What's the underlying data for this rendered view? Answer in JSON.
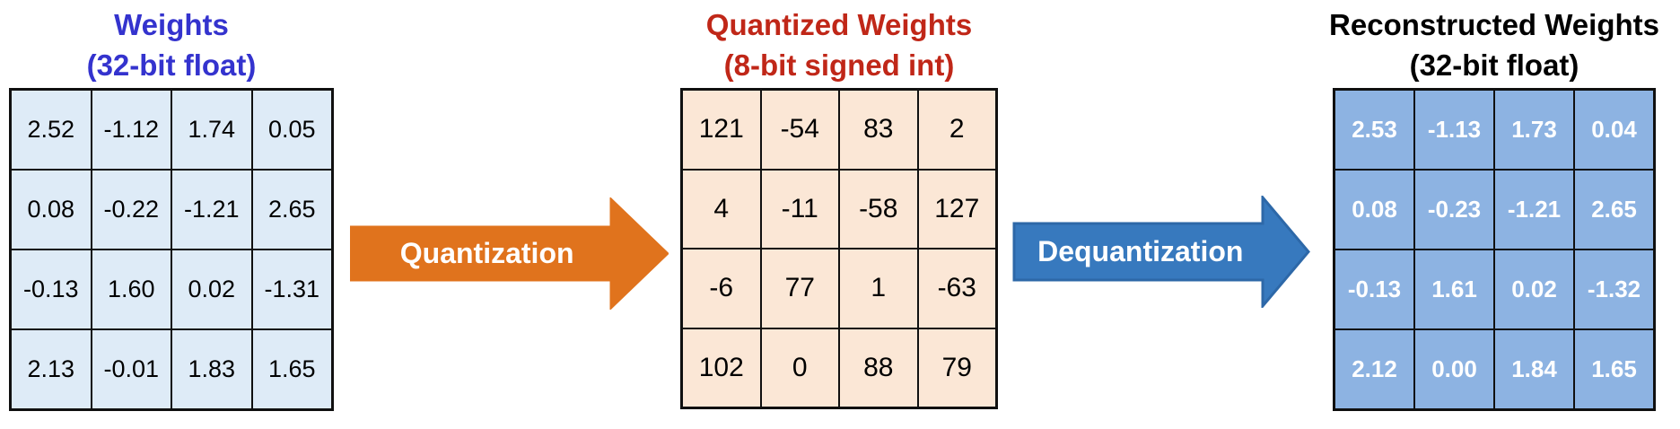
{
  "panels": {
    "weights": {
      "title_line1": "Weights",
      "title_line2": "(32-bit float)",
      "title_color": "#3433CE",
      "cell_bg": "#DEEBF7",
      "text_color": "#000000",
      "rows": [
        [
          "2.52",
          "-1.12",
          "1.74",
          "0.05"
        ],
        [
          "0.08",
          "-0.22",
          "-1.21",
          "2.65"
        ],
        [
          "-0.13",
          "1.60",
          "0.02",
          "-1.31"
        ],
        [
          "2.13",
          "-0.01",
          "1.83",
          "1.65"
        ]
      ]
    },
    "quantized": {
      "title_line1": "Quantized Weights",
      "title_line2": "(8-bit signed int)",
      "title_color": "#C02718",
      "cell_bg": "#FBE7D6",
      "text_color": "#000000",
      "rows": [
        [
          "121",
          "-54",
          "83",
          "2"
        ],
        [
          "4",
          "-11",
          "-58",
          "127"
        ],
        [
          "-6",
          "77",
          "1",
          "-63"
        ],
        [
          "102",
          "0",
          "88",
          "79"
        ]
      ]
    },
    "reconstructed": {
      "title_line1": "Reconstructed Weights",
      "title_line2": "(32-bit float)",
      "title_color": "#000000",
      "cell_bg": "#8DB3E2",
      "text_color": "#FFFFFF",
      "rows": [
        [
          "2.53",
          "-1.13",
          "1.73",
          "0.04"
        ],
        [
          "0.08",
          "-0.23",
          "-1.21",
          "2.65"
        ],
        [
          "-0.13",
          "1.61",
          "0.02",
          "-1.32"
        ],
        [
          "2.12",
          "0.00",
          "1.84",
          "1.65"
        ]
      ]
    }
  },
  "arrows": {
    "quantization": {
      "label": "Quantization",
      "fill": "#E0731D",
      "stroke": "#E0731D"
    },
    "dequantization": {
      "label": "Dequantization",
      "fill": "#3779BE",
      "stroke": "#2D68A8"
    }
  }
}
